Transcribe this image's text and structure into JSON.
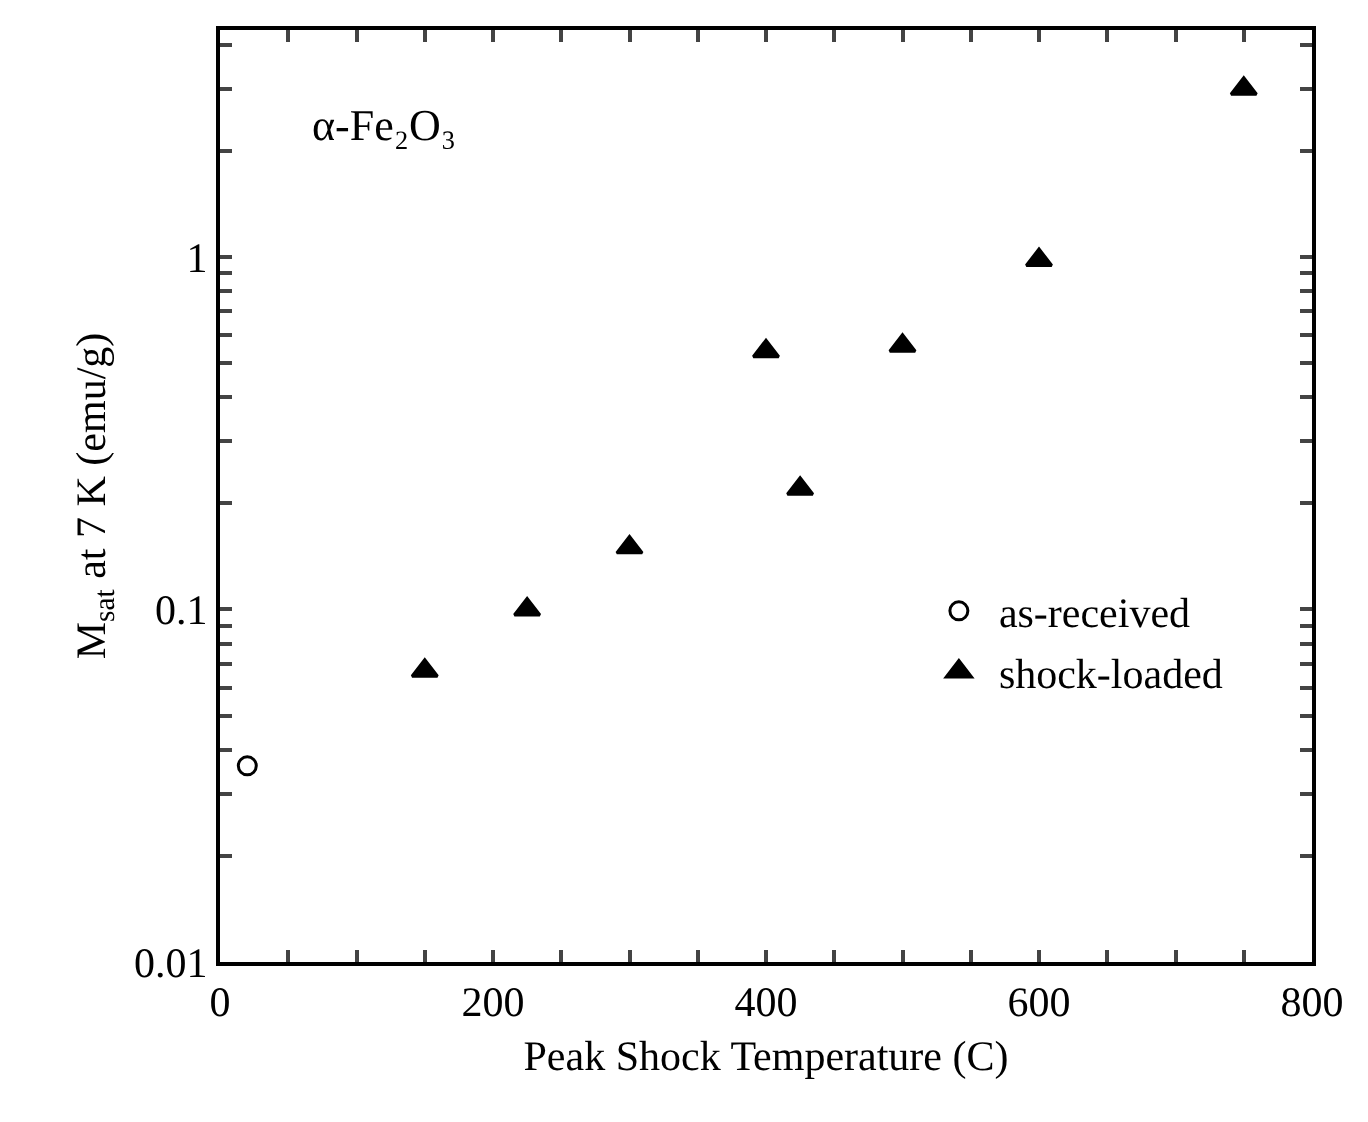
{
  "chart_data": {
    "type": "scatter",
    "xlabel": "Peak Shock Temperature (C)",
    "ylabel": "M$_{sat}$ at 7 K (emu/g)",
    "annotations": [
      "α-Fe₂O₃"
    ],
    "log": "y",
    "grid": false,
    "legend": "right",
    "xlim": [
      0,
      800
    ],
    "xticks": [
      0,
      {
        "value": 50,
        "label": null
      },
      {
        "value": 100,
        "label": null
      },
      {
        "value": 150,
        "label": null
      },
      200,
      {
        "value": 250,
        "label": null
      },
      {
        "value": 300,
        "label": null
      },
      {
        "value": 350,
        "label": null
      },
      400,
      {
        "value": 450,
        "label": null
      },
      {
        "value": 500,
        "label": null
      },
      {
        "value": 550,
        "label": null
      },
      600,
      {
        "value": 650,
        "label": null
      },
      {
        "value": 700,
        "label": null
      },
      {
        "value": 750,
        "label": null
      },
      800
    ],
    "ylim": [
      0.01,
      4.4
    ],
    "yticks": [
      0.01,
      {
        "value": 0.02,
        "label": null
      },
      {
        "value": 0.03,
        "label": null
      },
      {
        "value": 0.04,
        "label": null
      },
      {
        "value": 0.05,
        "label": null
      },
      {
        "value": 0.06,
        "label": null
      },
      {
        "value": 0.07,
        "label": null
      },
      {
        "value": 0.08,
        "label": null
      },
      {
        "value": 0.09,
        "label": null
      },
      0.1,
      {
        "value": 0.2,
        "label": null
      },
      {
        "value": 0.3,
        "label": null
      },
      {
        "value": 0.4,
        "label": null
      },
      {
        "value": 0.5,
        "label": null
      },
      {
        "value": 0.6,
        "label": null
      },
      {
        "value": 0.7,
        "label": null
      },
      {
        "value": 0.8,
        "label": null
      },
      {
        "value": 0.9,
        "label": null
      },
      1,
      {
        "value": 2,
        "label": null
      },
      {
        "value": 3,
        "label": null
      },
      {
        "value": 4,
        "label": null
      }
    ],
    "series": [
      {
        "name": "as-received",
        "color": "#000000",
        "marker": "circle",
        "x": [
          20
        ],
        "values": [
          0.036
        ]
      },
      {
        "name": "shock-loaded",
        "color": "#000000",
        "marker": "triangle",
        "x": [
          150,
          225,
          300,
          400,
          425,
          500,
          600,
          750
        ],
        "values": [
          0.067,
          0.1,
          0.15,
          0.54,
          0.22,
          0.56,
          0.98,
          3.0
        ]
      }
    ]
  }
}
